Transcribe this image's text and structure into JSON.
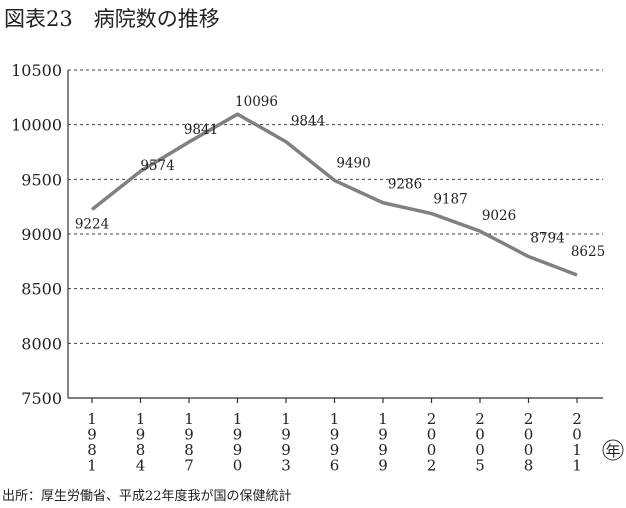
{
  "chart_data": {
    "type": "line",
    "title": "図表23　病院数の推移",
    "categories": [
      "1981",
      "1984",
      "1987",
      "1990",
      "1993",
      "1996",
      "1999",
      "2002",
      "2005",
      "2008",
      "2011"
    ],
    "series": [
      {
        "values": [
          9224,
          9574,
          9841,
          10096,
          9844,
          9490,
          9286,
          9187,
          9026,
          8794,
          8625
        ]
      }
    ],
    "xlabel": "年",
    "ylabel": "",
    "ylim": [
      7500,
      10500
    ],
    "yticks": [
      7500,
      8000,
      8500,
      9000,
      9500,
      10000,
      10500
    ],
    "grid": true,
    "line_color": "#808080",
    "source": "出所：厚生労働省、平成22年度我が国の保健統計"
  }
}
